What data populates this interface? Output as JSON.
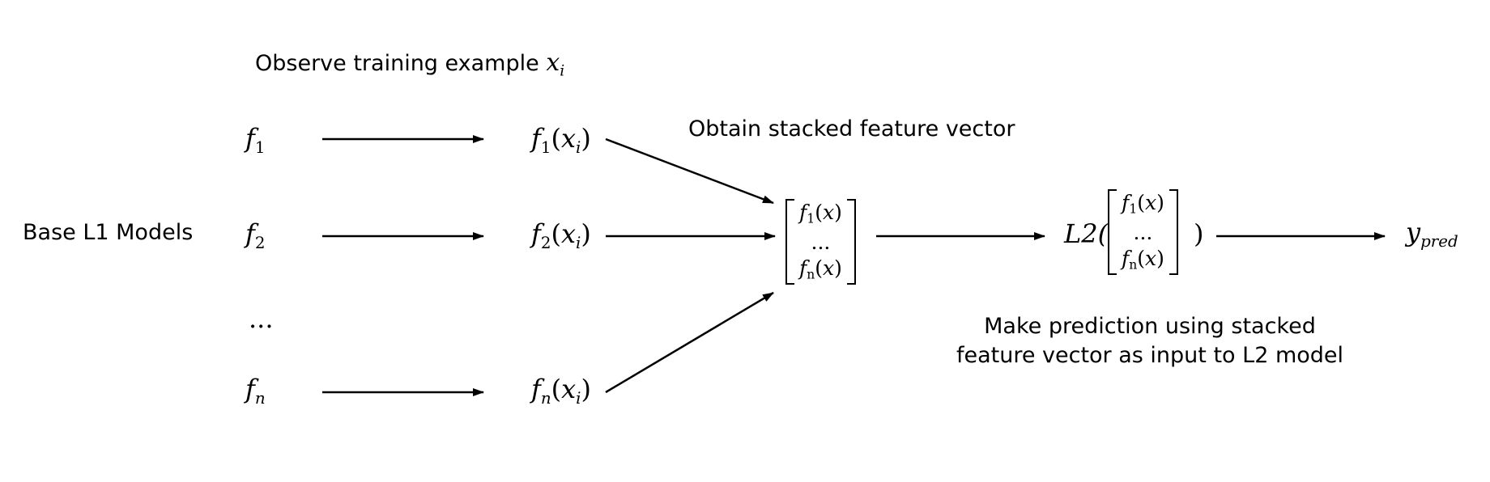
{
  "labels": {
    "observe": "Observe training example",
    "observe_var": "x",
    "observe_sub": "i",
    "base_models": "Base L1 Models",
    "stacked": "Obtain stacked feature vector",
    "predict_line1": "Make prediction using stacked",
    "predict_line2": "feature vector as input to L2 model"
  },
  "models": [
    {
      "f": "f",
      "sub": "1",
      "out_sub": "1"
    },
    {
      "f": "f",
      "sub": "2",
      "out_sub": "2"
    },
    {
      "f": "f",
      "sub": "n",
      "out_sub": "n"
    }
  ],
  "ellipsis": "...",
  "vector": {
    "top": "f",
    "top_sub": "1",
    "top_arg": "(x)",
    "mid": "...",
    "bot": "f",
    "bot_sub": "n",
    "bot_arg": "(x)"
  },
  "l2": {
    "name": "L2(",
    "close": ")"
  },
  "output": {
    "var": "y",
    "sub": "pred"
  }
}
